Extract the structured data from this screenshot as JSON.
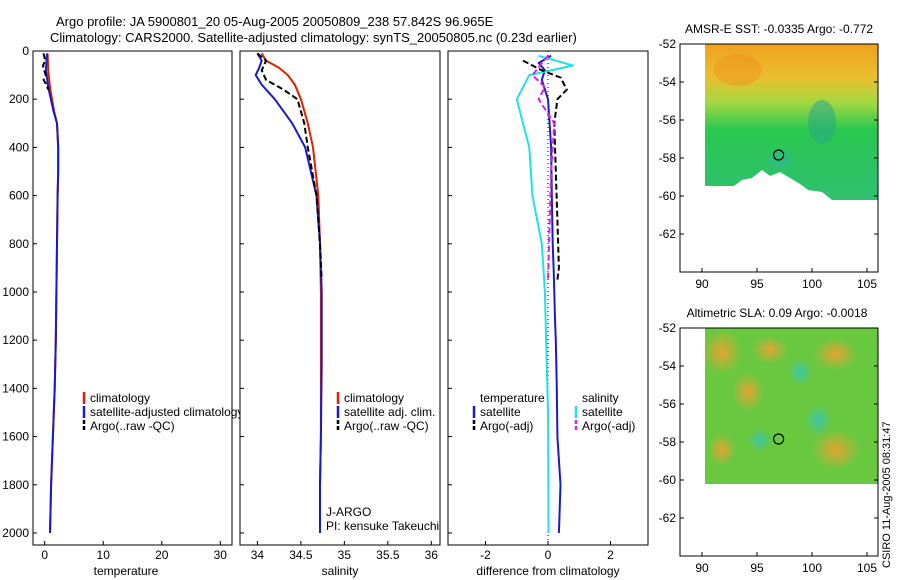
{
  "header": {
    "line1": "Argo profile: JA 5900801_20 05-Aug-2005 20050809_238 57.842S 96.965E",
    "line2": "Climatology: CARS2000. Satellite-adjusted climatology: synTS_20050805.nc (0.23d earlier)"
  },
  "credit": "CSIRO 11-Aug-2005 08:31:47",
  "colors": {
    "climatology": "#dd2200",
    "satellite": "#1a1acc",
    "argo": "#000000",
    "satellite_salinity_diff": "#22e0e8",
    "argo_salinity_diff": "#dd22dd"
  },
  "chart_data": [
    {
      "id": "temperature",
      "type": "line",
      "xlabel": "temperature",
      "ylabel": "",
      "xlim": [
        -2,
        32
      ],
      "ylim": [
        2050,
        0
      ],
      "xticks": [
        0,
        10,
        20,
        30
      ],
      "yticks": [
        0,
        200,
        400,
        600,
        800,
        1000,
        1200,
        1400,
        1600,
        1800,
        2000
      ],
      "legend": [
        "climatology",
        "satellite-adjusted climatology",
        "Argo(..raw -QC)"
      ],
      "series": [
        {
          "name": "climatology",
          "color": "#dd2200",
          "x": [
            0.5,
            0.6,
            0.9,
            1.6,
            2.1,
            2.3,
            2.3,
            2.2,
            2.1,
            2.0,
            1.9,
            1.7,
            1.4,
            1.1,
            0.9
          ],
          "y": [
            10,
            80,
            150,
            250,
            300,
            400,
            500,
            600,
            800,
            1000,
            1200,
            1400,
            1600,
            1800,
            2000
          ]
        },
        {
          "name": "satellite-adjusted climatology",
          "color": "#1a1acc",
          "x": [
            0.4,
            0.2,
            0.6,
            1.5,
            2.1,
            2.3,
            2.3,
            2.2,
            2.1,
            2.0,
            1.9,
            1.7,
            1.4,
            1.1,
            0.9
          ],
          "y": [
            10,
            80,
            150,
            250,
            300,
            400,
            500,
            600,
            800,
            1000,
            1200,
            1400,
            1600,
            1800,
            2000
          ]
        },
        {
          "name": "Argo(..raw -QC)",
          "color": "#000000",
          "x": [
            -0.2,
            0.1,
            -0.3,
            -0.1,
            0.2,
            -0.2,
            0.3,
            0.6
          ],
          "y": [
            10,
            40,
            60,
            80,
            100,
            120,
            140,
            160
          ]
        }
      ],
      "annotations": []
    },
    {
      "id": "salinity",
      "type": "line",
      "xlabel": "salinity",
      "ylabel": "",
      "xlim": [
        33.8,
        36.1
      ],
      "ylim": [
        2050,
        0
      ],
      "xticks": [
        34,
        34.5,
        35,
        35.5,
        36
      ],
      "yticks": [
        0,
        200,
        400,
        600,
        800,
        1000,
        1200,
        1400,
        1600,
        1800,
        2000
      ],
      "legend": [
        "climatology",
        "satellite adj. clim.",
        "Argo(..raw -QC)"
      ],
      "series": [
        {
          "name": "climatology",
          "color": "#dd2200",
          "x": [
            34.05,
            34.1,
            34.25,
            34.35,
            34.43,
            34.5,
            34.58,
            34.64,
            34.7,
            34.72,
            34.73,
            34.73,
            34.73,
            34.72,
            34.72
          ],
          "y": [
            10,
            40,
            70,
            100,
            140,
            200,
            300,
            400,
            600,
            800,
            1000,
            1300,
            1600,
            1800,
            2000
          ]
        },
        {
          "name": "satellite adj. clim.",
          "color": "#1a1acc",
          "x": [
            34.0,
            34.05,
            34.02,
            33.98,
            34.05,
            34.2,
            34.4,
            34.55,
            34.68,
            34.72,
            34.74,
            34.74,
            34.73,
            34.72,
            34.72
          ],
          "y": [
            10,
            40,
            70,
            100,
            140,
            200,
            300,
            400,
            600,
            800,
            1000,
            1300,
            1600,
            1800,
            2000
          ]
        },
        {
          "name": "Argo(..raw -QC)",
          "color": "#000000",
          "x": [
            34.0,
            34.1,
            34.05,
            34.1,
            34.3,
            34.46,
            34.54,
            34.58,
            34.63,
            34.68,
            34.72,
            34.74
          ],
          "y": [
            10,
            40,
            80,
            120,
            160,
            200,
            300,
            400,
            500,
            600,
            800,
            950
          ]
        }
      ],
      "annotations": [
        "J-ARGO",
        "PI: kensuke Takeuchi"
      ]
    },
    {
      "id": "difference",
      "type": "line",
      "xlabel": "difference from climatology",
      "ylabel": "",
      "xlim": [
        -3.2,
        3.2
      ],
      "ylim": [
        2050,
        0
      ],
      "xticks": [
        -2,
        0,
        2
      ],
      "yticks": [
        0,
        200,
        400,
        600,
        800,
        1000,
        1200,
        1400,
        1600,
        1800,
        2000
      ],
      "legend_temperature_title": "temperature",
      "legend_salinity_title": "salinity",
      "legend": [
        "satellite",
        "Argo(-adj)",
        "satellite",
        "Argo(-adj)"
      ],
      "series": [
        {
          "name": "temperature satellite",
          "color": "#1a1acc",
          "x": [
            0.1,
            -0.3,
            -0.1,
            -0.2,
            0.0,
            0.05,
            0.1,
            0.12,
            0.15,
            0.18,
            0.2,
            0.22,
            0.25,
            0.28,
            0.3,
            0.4,
            0.35
          ],
          "y": [
            20,
            50,
            80,
            120,
            200,
            300,
            400,
            600,
            800,
            900,
            1000,
            1100,
            1200,
            1400,
            1600,
            1800,
            2000
          ]
        },
        {
          "name": "salinity satellite",
          "color": "#22e0e8",
          "x": [
            -0.3,
            0.8,
            -0.6,
            -1.0,
            -0.8,
            -0.6,
            -0.5,
            -0.2,
            -0.1,
            0.0,
            0.02
          ],
          "y": [
            20,
            60,
            100,
            200,
            300,
            400,
            600,
            800,
            1000,
            1500,
            2000
          ]
        },
        {
          "name": "temperature Argo(-adj)",
          "color": "#000000",
          "x": [
            -0.8,
            -0.2,
            0.4,
            0.6,
            0.3,
            0.2,
            0.25,
            0.3,
            0.35,
            0.3
          ],
          "y": [
            40,
            80,
            110,
            160,
            200,
            300,
            500,
            700,
            900,
            950
          ]
        },
        {
          "name": "salinity Argo(-adj)",
          "color": "#dd22dd",
          "x": [
            0.0,
            -0.5,
            -0.1,
            -0.3,
            0.2,
            0.1,
            0.0
          ],
          "y": [
            20,
            100,
            150,
            200,
            300,
            500,
            950
          ]
        }
      ],
      "annotations": []
    },
    {
      "id": "sst-map",
      "type": "heatmap",
      "title": "AMSR-E SST: -0.0335 Argo: -0.772",
      "xlim": [
        88,
        106
      ],
      "ylim": [
        -64,
        -52
      ],
      "xticks": [
        90,
        95,
        100,
        105
      ],
      "yticks": [
        -52,
        -54,
        -56,
        -58,
        -60,
        -62
      ],
      "marker": {
        "lon": 96.965,
        "lat": -57.842
      }
    },
    {
      "id": "sla-map",
      "type": "heatmap",
      "title": "Altimetric SLA: 0.09 Argo: -0.0018",
      "xlim": [
        88,
        106
      ],
      "ylim": [
        -64,
        -52
      ],
      "xticks": [
        90,
        95,
        100,
        105
      ],
      "yticks": [
        -52,
        -54,
        -56,
        -58,
        -60,
        -62
      ],
      "marker": {
        "lon": 96.965,
        "lat": -57.842
      }
    }
  ]
}
